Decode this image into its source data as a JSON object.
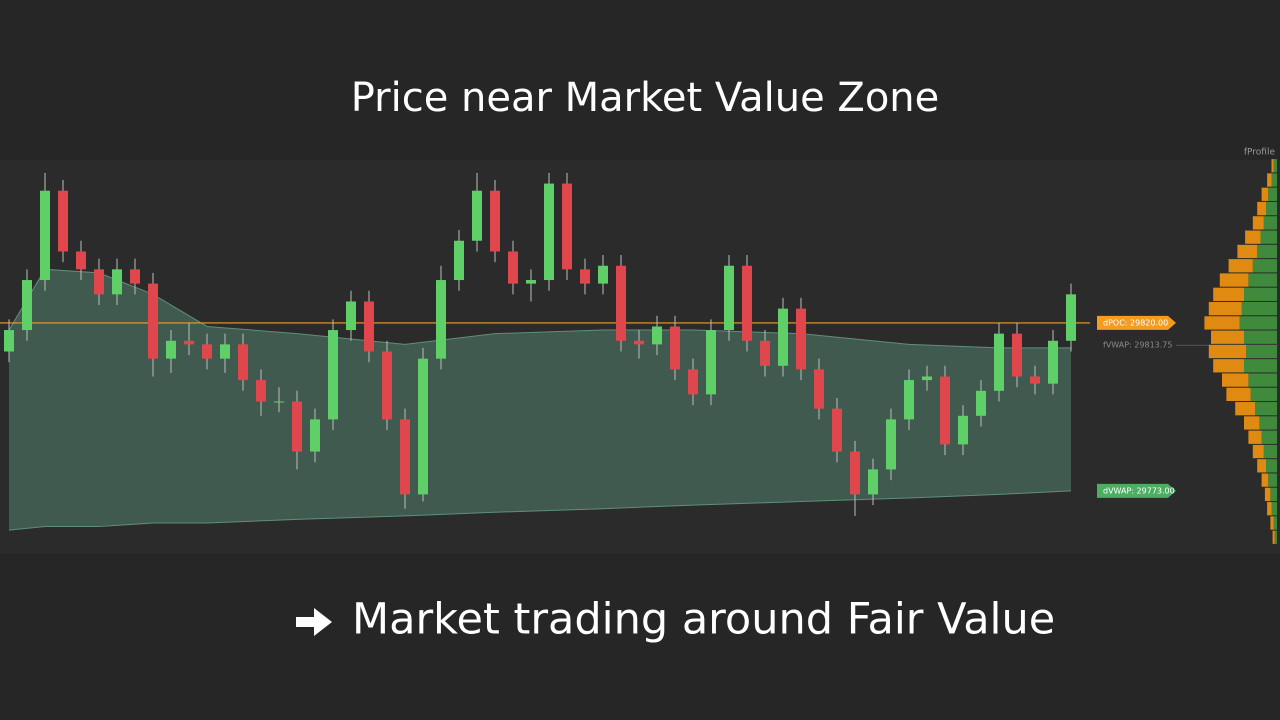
{
  "chart_data": {
    "type": "candlestick",
    "title": "Price near Market Value Zone",
    "caption": "Market trading around Fair Value",
    "profile_title": "fProfile",
    "ylim": [
      29755.6,
      29865.6
    ],
    "up_color": "#5fd068",
    "down_color": "#e0474c",
    "open": [
      29812,
      29818,
      29832,
      29857,
      29840,
      29835,
      29828,
      29835,
      29831,
      29810,
      29815,
      29814,
      29810,
      29814,
      29804,
      29798,
      29798,
      29784,
      29793,
      29818,
      29826,
      29812,
      29793,
      29772,
      29810,
      29832,
      29843,
      29857,
      29840,
      29831,
      29832,
      29859,
      29835,
      29831,
      29836,
      29815,
      29814,
      29819,
      29807,
      29800,
      29818,
      29836,
      29815,
      29808,
      29824,
      29807,
      29796,
      29784,
      29772,
      29779,
      29793,
      29804,
      29805,
      29786,
      29794,
      29801,
      29817,
      29805,
      29803,
      29815
    ],
    "high": [
      29821,
      29835,
      29862,
      29860,
      29843,
      29838,
      29838,
      29838,
      29834,
      29818,
      29820,
      29817,
      29817,
      29817,
      29807,
      29802,
      29801,
      29796,
      29821,
      29829,
      29829,
      29815,
      29796,
      29813,
      29836,
      29846,
      29862,
      29860,
      29843,
      29835,
      29862,
      29862,
      29838,
      29839,
      29839,
      29818,
      29822,
      29822,
      29810,
      29821,
      29839,
      29839,
      29818,
      29827,
      29827,
      29810,
      29799,
      29787,
      29782,
      29796,
      29807,
      29808,
      29808,
      29797,
      29804,
      29820,
      29820,
      29808,
      29818,
      29831
    ],
    "low": [
      29809,
      29815,
      29829,
      29837,
      29832,
      29825,
      29825,
      29828,
      29805,
      29806,
      29811,
      29807,
      29806,
      29801,
      29794,
      29795,
      29779,
      29781,
      29790,
      29815,
      29809,
      29790,
      29768,
      29770,
      29807,
      29829,
      29840,
      29837,
      29828,
      29826,
      29829,
      29832,
      29828,
      29828,
      29812,
      29810,
      29811,
      29804,
      29797,
      29797,
      29815,
      29812,
      29805,
      29805,
      29804,
      29793,
      29781,
      29766,
      29769,
      29776,
      29790,
      29801,
      29783,
      29783,
      29791,
      29798,
      29802,
      29800,
      29800,
      29812
    ],
    "close": [
      29818,
      29832,
      29857,
      29840,
      29835,
      29828,
      29835,
      29831,
      29810,
      29815,
      29814,
      29810,
      29814,
      29804,
      29798,
      29798,
      29784,
      29793,
      29818,
      29826,
      29812,
      29793,
      29772,
      29810,
      29832,
      29843,
      29857,
      29840,
      29831,
      29832,
      29859,
      29835,
      29831,
      29836,
      29815,
      29814,
      29819,
      29807,
      29800,
      29818,
      29836,
      29815,
      29808,
      29824,
      29807,
      29796,
      29784,
      29772,
      29779,
      29793,
      29804,
      29805,
      29786,
      29794,
      29801,
      29817,
      29805,
      29803,
      29815,
      29828
    ],
    "band": {
      "color": "#4a6b5c",
      "x": [
        0,
        2,
        5,
        8,
        11,
        16,
        22,
        27,
        33,
        38,
        44,
        50,
        55,
        59
      ],
      "upper": [
        29818,
        29835,
        29834,
        29828,
        29819,
        29817,
        29814,
        29817,
        29818,
        29818,
        29817,
        29814,
        29813,
        29813
      ],
      "lower": [
        29762,
        29763,
        29763,
        29764,
        29764,
        29765,
        29766,
        29767,
        29768,
        29769,
        29770,
        29771,
        29772,
        29773
      ]
    },
    "dpoc": 29820,
    "dpoc_label": "dPOC: 29820.00",
    "dpoc_color": "#f39c1f",
    "fvwap": 29813.75,
    "fvwap_label": "fVWAP: 29813.75",
    "dvwap": 29773,
    "dvwap_label": "dVWAP: 29773.00",
    "dvwap_color": "#4cae62",
    "profile": {
      "green_color": "#3f8a3c",
      "orange_color": "#e08a12",
      "levels": [
        29864,
        29860,
        29856,
        29852,
        29848,
        29844,
        29840,
        29836,
        29832,
        29828,
        29824,
        29820,
        29816,
        29812,
        29808,
        29804,
        29800,
        29796,
        29792,
        29788,
        29784,
        29780,
        29776,
        29772,
        29768,
        29764,
        29760
      ],
      "green": [
        3,
        5,
        8,
        10,
        12,
        15,
        18,
        22,
        26,
        30,
        32,
        34,
        30,
        28,
        30,
        26,
        24,
        20,
        16,
        14,
        12,
        10,
        8,
        6,
        5,
        3,
        2
      ],
      "orange": [
        2,
        4,
        6,
        8,
        10,
        14,
        18,
        22,
        26,
        28,
        30,
        32,
        30,
        34,
        28,
        24,
        22,
        18,
        14,
        12,
        10,
        8,
        6,
        5,
        4,
        3,
        2
      ]
    }
  }
}
